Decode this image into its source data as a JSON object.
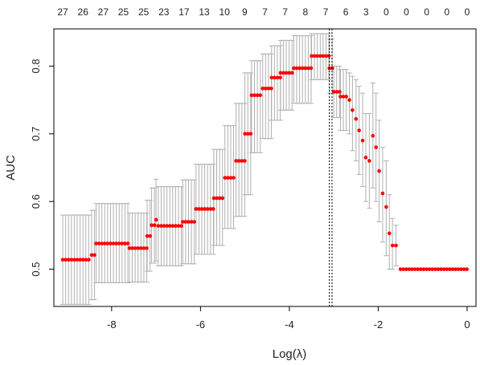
{
  "chart_data": {
    "type": "scatter",
    "xlabel": "Log(λ)",
    "ylabel": "AUC",
    "xlim": [
      -9.3,
      0.2
    ],
    "ylim": [
      0.445,
      0.855
    ],
    "x_ticks": [
      -8,
      -6,
      -4,
      -2,
      0
    ],
    "y_ticks": [
      0.5,
      0.6,
      0.7,
      0.8
    ],
    "x_tick_labels": [
      "-8",
      "-6",
      "-4",
      "-2",
      "0"
    ],
    "y_tick_labels": [
      "0.5",
      "0.6",
      "0.7",
      "0.8"
    ],
    "top_axis_labels": [
      "27",
      "26",
      "27",
      "25",
      "25",
      "23",
      "17",
      "13",
      "10",
      "9",
      "7",
      "7",
      "8",
      "7",
      "6",
      "3",
      "0",
      "0",
      "0",
      "0",
      "0"
    ],
    "vertical_lines": [
      -3.1,
      -3.04
    ],
    "point_color": "#ff0000",
    "errorbar_color": "#b0b0b0",
    "series": [
      {
        "name": "",
        "segments": [
          {
            "x0": -9.1,
            "x1": -8.45,
            "mean": 0.514,
            "lo": 0.448,
            "hi": 0.58
          },
          {
            "x0": -8.45,
            "x1": -8.35,
            "mean": 0.521,
            "lo": 0.455,
            "hi": 0.587
          },
          {
            "x0": -8.35,
            "x1": -7.6,
            "mean": 0.538,
            "lo": 0.48,
            "hi": 0.597
          },
          {
            "x0": -7.6,
            "x1": -7.2,
            "mean": 0.531,
            "lo": 0.481,
            "hi": 0.583
          },
          {
            "x0": -7.2,
            "x1": -7.1,
            "mean": 0.549,
            "lo": 0.497,
            "hi": 0.602
          },
          {
            "x0": -7.1,
            "x1": -7.0,
            "mean": 0.565,
            "lo": 0.509,
            "hi": 0.62
          },
          {
            "x0": -7.0,
            "x1": -6.95,
            "mean": 0.573,
            "lo": 0.512,
            "hi": 0.633
          },
          {
            "x0": -6.95,
            "x1": -6.4,
            "mean": 0.564,
            "lo": 0.505,
            "hi": 0.622
          },
          {
            "x0": -6.4,
            "x1": -6.1,
            "mean": 0.57,
            "lo": 0.508,
            "hi": 0.632
          },
          {
            "x0": -6.1,
            "x1": -5.7,
            "mean": 0.589,
            "lo": 0.522,
            "hi": 0.655
          },
          {
            "x0": -5.7,
            "x1": -5.45,
            "mean": 0.605,
            "lo": 0.535,
            "hi": 0.677
          },
          {
            "x0": -5.45,
            "x1": -5.2,
            "mean": 0.635,
            "lo": 0.56,
            "hi": 0.712
          },
          {
            "x0": -5.2,
            "x1": -5.0,
            "mean": 0.66,
            "lo": 0.578,
            "hi": 0.745
          },
          {
            "x0": -5.0,
            "x1": -4.85,
            "mean": 0.7,
            "lo": 0.61,
            "hi": 0.79
          },
          {
            "x0": -4.85,
            "x1": -4.6,
            "mean": 0.757,
            "lo": 0.672,
            "hi": 0.808
          },
          {
            "x0": -4.6,
            "x1": -4.4,
            "mean": 0.767,
            "lo": 0.693,
            "hi": 0.818
          },
          {
            "x0": -4.4,
            "x1": -4.2,
            "mean": 0.783,
            "lo": 0.72,
            "hi": 0.83
          },
          {
            "x0": -4.2,
            "x1": -3.9,
            "mean": 0.79,
            "lo": 0.735,
            "hi": 0.838
          },
          {
            "x0": -3.9,
            "x1": -3.5,
            "mean": 0.797,
            "lo": 0.745,
            "hi": 0.845
          },
          {
            "x0": -3.5,
            "x1": -3.1,
            "mean": 0.815,
            "lo": 0.78,
            "hi": 0.848
          },
          {
            "x0": -3.1,
            "x1": -3.0,
            "mean": 0.797,
            "lo": 0.76,
            "hi": 0.84
          },
          {
            "x0": -3.0,
            "x1": -2.85,
            "mean": 0.762,
            "lo": 0.724,
            "hi": 0.8
          },
          {
            "x0": -2.85,
            "x1": -2.7,
            "mean": 0.755,
            "lo": 0.705,
            "hi": 0.795
          }
        ],
        "points": [
          {
            "x": -2.65,
            "y": 0.75,
            "lo": 0.7,
            "hi": 0.79
          },
          {
            "x": -2.58,
            "y": 0.735,
            "lo": 0.675,
            "hi": 0.785
          },
          {
            "x": -2.5,
            "y": 0.722,
            "lo": 0.66,
            "hi": 0.78
          },
          {
            "x": -2.43,
            "y": 0.705,
            "lo": 0.64,
            "hi": 0.77
          },
          {
            "x": -2.35,
            "y": 0.69,
            "lo": 0.622,
            "hi": 0.76
          },
          {
            "x": -2.28,
            "y": 0.665,
            "lo": 0.6,
            "hi": 0.73
          },
          {
            "x": -2.2,
            "y": 0.66,
            "lo": 0.59,
            "hi": 0.73
          },
          {
            "x": -2.12,
            "y": 0.697,
            "lo": 0.62,
            "hi": 0.775
          },
          {
            "x": -2.05,
            "y": 0.68,
            "lo": 0.6,
            "hi": 0.76
          },
          {
            "x": -1.98,
            "y": 0.645,
            "lo": 0.57,
            "hi": 0.72
          },
          {
            "x": -1.9,
            "y": 0.612,
            "lo": 0.54,
            "hi": 0.68
          },
          {
            "x": -1.82,
            "y": 0.592,
            "lo": 0.52,
            "hi": 0.66
          },
          {
            "x": -1.75,
            "y": 0.553,
            "lo": 0.5,
            "hi": 0.61
          },
          {
            "x": -1.68,
            "y": 0.535,
            "lo": 0.5,
            "hi": 0.575
          },
          {
            "x": -1.6,
            "y": 0.535,
            "lo": 0.505,
            "hi": 0.565
          }
        ],
        "flat_tail": {
          "x0": -1.5,
          "x1": 0.0,
          "value": 0.5
        }
      }
    ]
  }
}
